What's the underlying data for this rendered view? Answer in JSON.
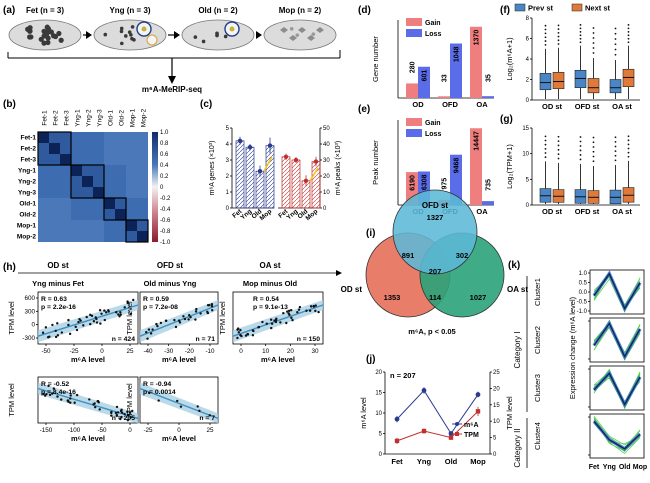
{
  "panel_labels": {
    "a": "(a)",
    "b": "(b)",
    "c": "(c)",
    "d": "(d)",
    "e": "(e)",
    "f": "(f)",
    "g": "(g)",
    "h": "(h)",
    "i": "(i)",
    "j": "(j)",
    "k": "(k)"
  },
  "panel_a": {
    "stages": [
      "Fet (n = 3)",
      "Yng (n = 3)",
      "Old (n = 2)",
      "Mop (n = 2)"
    ],
    "assay": "m⁶A-MeRIP-seq",
    "colors": {
      "oocyte_dark": "#3a3a3a",
      "oocyte_light": "#c8c8c8",
      "follicle": "#1f3f8a",
      "ovary": "#dcdcdc"
    }
  },
  "panel_b": {
    "samples": [
      "Fet-1",
      "Fet-2",
      "Fet-3",
      "Yng-1",
      "Yng-2",
      "Yng-3",
      "Old-1",
      "Old-2",
      "Mop-1",
      "Mop-2"
    ],
    "colorbar_ticks": [
      "1.0",
      "0.8",
      "0.6",
      "0.4",
      "0.2",
      "0",
      "-0.2",
      "-0.4",
      "-0.6",
      "-0.8",
      "-1.0"
    ],
    "groups": [
      [
        0,
        3
      ],
      [
        3,
        6
      ],
      [
        6,
        8
      ],
      [
        8,
        10
      ]
    ],
    "colors": {
      "high": "#0d2c6b",
      "mid": "#7fa6d0",
      "zero": "#f2f2f2",
      "low": "#8b1a2f"
    }
  },
  "panel_c": {
    "ylabel_left": "m⁶A genes (×10³)",
    "ylabel_right": "m⁶A peaks (×10³)",
    "yticks_left": [
      "0",
      "1",
      "2",
      "3",
      "4",
      "5"
    ],
    "yticks_right": [
      "0",
      "10",
      "20",
      "30",
      "40",
      "50"
    ],
    "categories": [
      "Fet",
      "Yng",
      "Old",
      "Mop"
    ],
    "chart_data": {
      "type": "bar",
      "categories": [
        "Fet",
        "Yng",
        "Old",
        "Mop"
      ],
      "series": [
        {
          "values": [
            4.2,
            3.8,
            2.3,
            3.9
          ],
          "error": [
            0.25,
            0.2,
            0.35,
            0.5
          ]
        },
        {
          "values": [
            32,
            30,
            17,
            29
          ],
          "error": [
            2,
            1.8,
            3.5,
            3
          ]
        }
      ],
      "ylim": [
        0,
        5
      ],
      "ylim_right": [
        0,
        50
      ]
    },
    "colors": {
      "genes": "#2b3a8f",
      "peaks": "#c12f2f",
      "highlight": "#f5c518"
    }
  },
  "panel_d": {
    "ylabel": "Gene number",
    "legend": [
      "Gain",
      "Loss"
    ],
    "categories": [
      "OD",
      "OFD",
      "OA"
    ],
    "chart_data": {
      "type": "bar",
      "categories": [
        "OD",
        "OFD",
        "OA"
      ],
      "series": [
        {
          "name": "Gain",
          "values": [
            280,
            33,
            1370
          ]
        },
        {
          "name": "Loss",
          "values": [
            601,
            1048,
            35
          ]
        }
      ],
      "ylim": [
        0,
        1500
      ]
    },
    "value_labels": {
      "gain": [
        "280",
        "33",
        "1370"
      ],
      "loss": [
        "601",
        "1048",
        "35"
      ]
    },
    "colors": {
      "gain": "#ef7f7f",
      "loss": "#5b6ce8"
    }
  },
  "panel_e": {
    "ylabel": "Peak number",
    "legend": [
      "Gain",
      "Loss"
    ],
    "categories": [
      "OD",
      "OFD",
      "OA"
    ],
    "chart_data": {
      "type": "bar",
      "categories": [
        "OD",
        "OFD",
        "OA"
      ],
      "series": [
        {
          "name": "Gain",
          "values": [
            6190,
            975,
            14447
          ]
        },
        {
          "name": "Loss",
          "values": [
            6308,
            9468,
            735
          ]
        }
      ],
      "ylim": [
        0,
        16000
      ]
    },
    "value_labels": {
      "gain": [
        "6190",
        "975",
        "14447"
      ],
      "loss": [
        "6308",
        "9468",
        "735"
      ]
    },
    "colors": {
      "gain": "#ef7f7f",
      "loss": "#5b6ce8"
    }
  },
  "panel_f": {
    "ylabel": "Log₂(m⁶A+1)",
    "legend": [
      "Prev st",
      "Next st"
    ],
    "categories": [
      "OD st",
      "OFD st",
      "OA st"
    ],
    "yticks": [
      "0",
      "2",
      "4",
      "6",
      "8"
    ],
    "chart_data": {
      "type": "box",
      "categories": [
        "OD st",
        "OFD st",
        "OA st"
      ],
      "series": [
        {
          "name": "Prev st",
          "q1": [
            1.0,
            1.2,
            0.7
          ],
          "median": [
            1.7,
            2.1,
            1.2
          ],
          "q3": [
            2.6,
            2.9,
            2.0
          ],
          "whisker_high": [
            5.0,
            5.3,
            3.9
          ]
        },
        {
          "name": "Next st",
          "q1": [
            1.1,
            0.7,
            1.3
          ],
          "median": [
            1.8,
            1.2,
            2.2
          ],
          "q3": [
            2.7,
            2.1,
            3.0
          ],
          "whisker_high": [
            5.1,
            4.1,
            5.3
          ]
        }
      ],
      "ylim": [
        0,
        8
      ]
    },
    "colors": {
      "prev": "#4a86c5",
      "next": "#e07a3a"
    }
  },
  "panel_g": {
    "ylabel": "Log₂(TPM+1)",
    "categories": [
      "OD st",
      "OFD st",
      "OA st"
    ],
    "yticks": [
      "0",
      "5",
      "10",
      "15"
    ],
    "chart_data": {
      "type": "box",
      "categories": [
        "OD st",
        "OFD st",
        "OA st"
      ],
      "series": [
        {
          "name": "Prev st",
          "median": [
            1.8,
            1.6,
            1.5
          ],
          "q3": [
            3.2,
            3.0,
            2.9
          ],
          "whisker_high": [
            8.5,
            8.0,
            7.8
          ]
        },
        {
          "name": "Next st",
          "median": [
            1.7,
            1.5,
            1.9
          ],
          "q3": [
            3.0,
            2.8,
            3.4
          ],
          "whisker_high": [
            8.2,
            7.6,
            8.6
          ]
        }
      ],
      "ylim": [
        0,
        15
      ]
    },
    "colors": {
      "prev": "#4a86c5",
      "next": "#e07a3a"
    }
  },
  "panel_h": {
    "titles": [
      "OD st",
      "OFD st",
      "OA st"
    ],
    "subtitles": [
      "Yng minus Fet",
      "Old minus Yng",
      "Mop minus Old"
    ],
    "xlabel": "m⁶A level",
    "ylabel": "TPM level",
    "chart_data": [
      {
        "type": "scatter",
        "r": "R = 0.63",
        "p": "p = 2.2e-16",
        "n": "n = 424",
        "xticks": [
          "-50",
          "-25",
          "0",
          "25"
        ],
        "yticks": [
          "600",
          "300",
          "0",
          "-300"
        ],
        "xlim": [
          -75,
          40
        ],
        "ylim": [
          -450,
          700
        ]
      },
      {
        "type": "scatter",
        "r": "R = 0.59",
        "p": "p = 7.2e-08",
        "n": "n = 71",
        "xticks": [
          "-40",
          "-30",
          "-20",
          "-10"
        ],
        "yticks": [],
        "xlim": [
          -45,
          -5
        ],
        "ylim": [
          -300,
          300
        ]
      },
      {
        "type": "scatter",
        "r": "R = 0.54",
        "p": "p = 9.1e-13",
        "n": "n = 150",
        "xticks": [
          "0",
          "10",
          "20",
          "30"
        ],
        "yticks": [],
        "xlim": [
          -5,
          35
        ],
        "ylim": [
          -100,
          150
        ]
      },
      {
        "type": "scatter",
        "r": "R = -0.52",
        "p": "p = 8.4e-16",
        "n": "n = 205",
        "xticks": [
          "-150",
          "-100",
          "-50",
          "0"
        ],
        "yticks": [],
        "xlim": [
          -170,
          20
        ],
        "ylim": [
          -100,
          100
        ]
      },
      {
        "type": "scatter",
        "r": "R = -0.94",
        "p": "p = 0.0014",
        "n": "n = 7",
        "xticks": [
          "-25",
          "0",
          "25"
        ],
        "yticks": [],
        "xlim": [
          -40,
          35
        ],
        "ylim": [
          -50,
          60
        ]
      }
    ],
    "colors": {
      "fit": "#3d8fbf",
      "band": "#a9cfe3",
      "point": "#111111"
    }
  },
  "panel_i": {
    "sets": [
      "OFD st",
      "OD st",
      "OA st"
    ],
    "counts": {
      "ofd_only": "1327",
      "od_only": "1353",
      "oa_only": "1027",
      "ofd_od": "891",
      "ofd_oa": "302",
      "od_oa": "114",
      "all": "207"
    },
    "caption": "m⁶A, p < 0.05",
    "colors": {
      "ofd": "#5cb8d6",
      "od": "#e6705a",
      "oa": "#2aa37a"
    }
  },
  "panel_j": {
    "n_label": "n = 207",
    "ylabel_left": "m⁶A level",
    "ylabel_right": "TPM level",
    "yticks_left": [
      "0",
      "5",
      "10",
      "15",
      "20"
    ],
    "yticks_right": [
      "0",
      "5",
      "10",
      "15",
      "20",
      "25"
    ],
    "categories": [
      "Fet",
      "Yng",
      "Old",
      "Mop"
    ],
    "legend": [
      "m⁶A",
      "TPM"
    ],
    "chart_data": {
      "type": "line",
      "categories": [
        "Fet",
        "Yng",
        "Old",
        "Mop"
      ],
      "series": [
        {
          "name": "m⁶A",
          "values": [
            8.5,
            15.5,
            5,
            14.5
          ],
          "error": [
            0.8,
            0.8,
            0.5,
            0.7
          ]
        },
        {
          "name": "TPM",
          "values": [
            4,
            7,
            5,
            13
          ],
          "error": [
            0.9,
            0.8,
            0.7,
            1.4
          ]
        }
      ],
      "ylim": [
        0,
        20
      ],
      "ylim_right": [
        0,
        25
      ]
    },
    "colors": {
      "m6a": "#2b3a8f",
      "tpm": "#c12f2f"
    }
  },
  "panel_k": {
    "category_labels": [
      "Category I",
      "Category II"
    ],
    "clusters": [
      "Cluster1",
      "Cluster2",
      "Cluster3",
      "Cluster4"
    ],
    "ylabel": "Expression change (m⁶A level)",
    "yticks": [
      "1.0",
      "0.5",
      "0.0",
      "-0.5",
      "-1.0"
    ],
    "categories": [
      "Fet",
      "Yng",
      "Old",
      "Mop"
    ],
    "chart_data": {
      "type": "line",
      "categories": [
        "Fet",
        "Yng",
        "Old",
        "Mop"
      ],
      "series": [
        {
          "name": "Cluster1",
          "values": [
            -0.2,
            1.0,
            -0.9,
            0.5
          ]
        },
        {
          "name": "Cluster2",
          "values": [
            -0.3,
            0.9,
            -0.9,
            0.6
          ]
        },
        {
          "name": "Cluster3",
          "values": [
            -0.1,
            0.8,
            -0.9,
            0.6
          ]
        },
        {
          "name": "Cluster4",
          "values": [
            0.8,
            -0.2,
            -0.7,
            0.1
          ]
        }
      ],
      "ylim": [
        -1.2,
        1.2
      ]
    },
    "colors": {
      "mean": "#1b1f5c",
      "line_band": "#2f6fd8",
      "member": "#4ccd4a"
    }
  }
}
